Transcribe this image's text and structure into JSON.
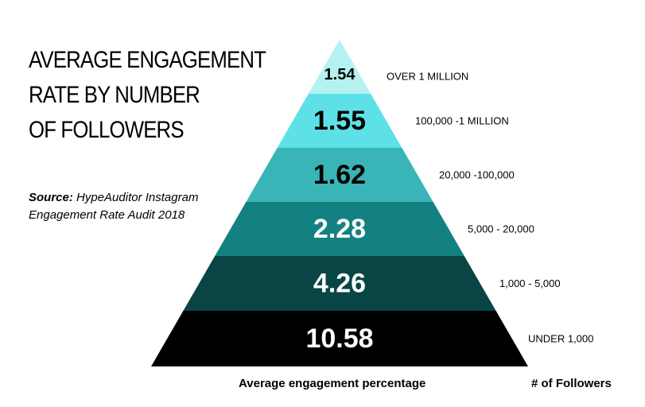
{
  "title_lines": [
    "AVERAGE ENGAGEMENT",
    "RATE BY NUMBER",
    "OF FOLLOWERS"
  ],
  "source": {
    "label": "Source:",
    "text": " HypeAuditor Instagram Engagement Rate Audit 2018"
  },
  "axis_labels": {
    "value": "Average engagement percentage",
    "tier": "# of Followers"
  },
  "chart_data": {
    "type": "bar",
    "title": "AVERAGE ENGAGEMENT RATE BY NUMBER OF FOLLOWERS",
    "xlabel": "# of Followers",
    "ylabel": "Average engagement percentage",
    "categories": [
      "OVER 1 MILLION",
      "100,000 -1 MILLION",
      "20,000 -100,000",
      "5,000 - 20,000",
      "1,000 - 5,000",
      "UNDER 1,000"
    ],
    "values": [
      1.54,
      1.55,
      1.62,
      2.28,
      4.26,
      10.58
    ],
    "value_labels": [
      "1.54",
      "1.55",
      "1.62",
      "2.28",
      "4.26",
      "10.58"
    ],
    "colors": [
      "#b5f1f1",
      "#5de1e6",
      "#3ab5b7",
      "#138181",
      "#0a4545",
      "#000000"
    ],
    "text_colors": [
      "#000000",
      "#000000",
      "#000000",
      "#ffffff",
      "#ffffff",
      "#ffffff"
    ]
  }
}
